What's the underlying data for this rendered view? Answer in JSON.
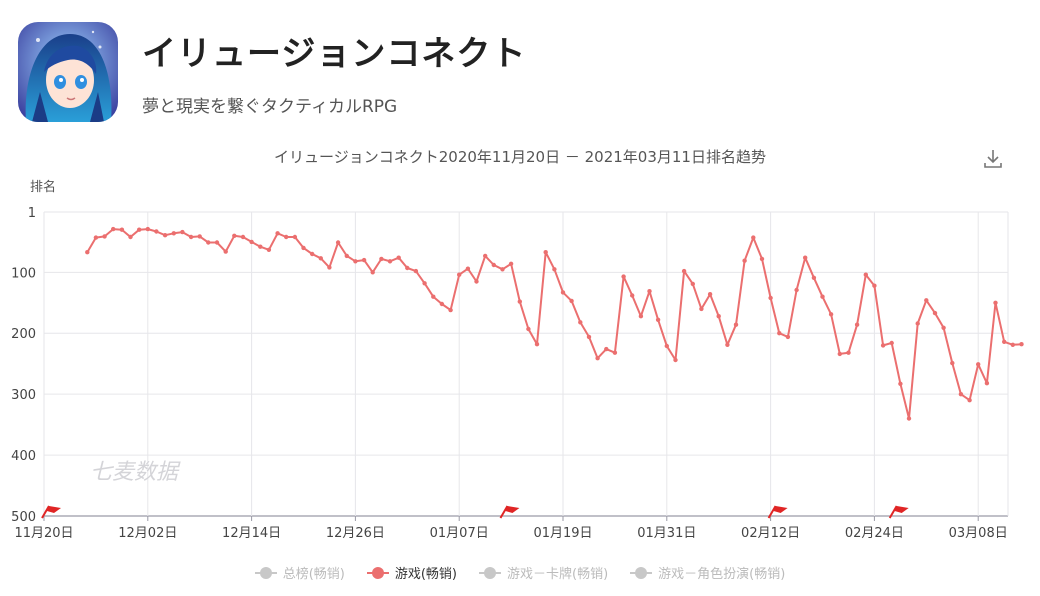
{
  "app": {
    "title": "イリュージョンコネクト",
    "subtitle": "夢と現実を繋ぐタクティカルRPG",
    "icon": "anime-girl-app-icon"
  },
  "download_icon": "download-icon",
  "watermark": "七麦数据",
  "colors": {
    "line": "#eb6f6f",
    "grid": "#e6e6ea",
    "flag": "#e02525",
    "legend_inactive": "#c8c8c8"
  },
  "chart_data": {
    "type": "line",
    "title": "イリュージョンコネクト2020年11月20日 － 2021年03月11日排名趋势",
    "ylabel": "排名",
    "ylim": [
      1,
      500
    ],
    "y_inverted": true,
    "y_ticks": [
      "1",
      "100",
      "200",
      "300",
      "400",
      "500"
    ],
    "x_ticks": [
      "11月20日",
      "12月02日",
      "12月14日",
      "12月26日",
      "01月07日",
      "01月19日",
      "01月31日",
      "02月12日",
      "02月24日",
      "03月08日"
    ],
    "x_range": [
      "2020-11-20",
      "2021-03-11"
    ],
    "grid": true,
    "legend_position": "bottom-center",
    "legend": [
      {
        "name": "总榜(畅销)",
        "active": false
      },
      {
        "name": "游戏(畅销)",
        "active": true
      },
      {
        "name": "游戏－卡牌(畅销)",
        "active": false
      },
      {
        "name": "游戏－角色扮演(畅销)",
        "active": false
      }
    ],
    "flags": [
      "2020-11-20",
      "2021-01-12",
      "2021-02-12",
      "2021-02-26"
    ],
    "series": [
      {
        "name": "游戏(畅销)",
        "points": [
          [
            "2020-11-25",
            67
          ],
          [
            "2020-11-26",
            43
          ],
          [
            "2020-11-27",
            41
          ],
          [
            "2020-11-28",
            29
          ],
          [
            "2020-11-29",
            30
          ],
          [
            "2020-11-30",
            42
          ],
          [
            "2020-12-01",
            30
          ],
          [
            "2020-12-02",
            29
          ],
          [
            "2020-12-03",
            33
          ],
          [
            "2020-12-04",
            39
          ],
          [
            "2020-12-05",
            36
          ],
          [
            "2020-12-06",
            34
          ],
          [
            "2020-12-07",
            42
          ],
          [
            "2020-12-08",
            41
          ],
          [
            "2020-12-09",
            51
          ],
          [
            "2020-12-10",
            51
          ],
          [
            "2020-12-11",
            66
          ],
          [
            "2020-12-12",
            40
          ],
          [
            "2020-12-13",
            42
          ],
          [
            "2020-12-14",
            50
          ],
          [
            "2020-12-15",
            58
          ],
          [
            "2020-12-16",
            63
          ],
          [
            "2020-12-17",
            36
          ],
          [
            "2020-12-18",
            42
          ],
          [
            "2020-12-19",
            42
          ],
          [
            "2020-12-20",
            60
          ],
          [
            "2020-12-21",
            70
          ],
          [
            "2020-12-22",
            77
          ],
          [
            "2020-12-23",
            92
          ],
          [
            "2020-12-24",
            51
          ],
          [
            "2020-12-25",
            73
          ],
          [
            "2020-12-26",
            82
          ],
          [
            "2020-12-27",
            80
          ],
          [
            "2020-12-28",
            100
          ],
          [
            "2020-12-29",
            78
          ],
          [
            "2020-12-30",
            82
          ],
          [
            "2020-12-31",
            76
          ],
          [
            "2021-01-01",
            93
          ],
          [
            "2021-01-02",
            98
          ],
          [
            "2021-01-03",
            118
          ],
          [
            "2021-01-04",
            140
          ],
          [
            "2021-01-05",
            152
          ],
          [
            "2021-01-06",
            162
          ],
          [
            "2021-01-07",
            104
          ],
          [
            "2021-01-08",
            94
          ],
          [
            "2021-01-09",
            115
          ],
          [
            "2021-01-10",
            73
          ],
          [
            "2021-01-11",
            88
          ],
          [
            "2021-01-12",
            95
          ],
          [
            "2021-01-13",
            86
          ],
          [
            "2021-01-14",
            148
          ],
          [
            "2021-01-15",
            193
          ],
          [
            "2021-01-16",
            218
          ],
          [
            "2021-01-17",
            67
          ],
          [
            "2021-01-18",
            95
          ],
          [
            "2021-01-19",
            133
          ],
          [
            "2021-01-20",
            147
          ],
          [
            "2021-01-21",
            182
          ],
          [
            "2021-01-22",
            206
          ],
          [
            "2021-01-23",
            241
          ],
          [
            "2021-01-24",
            226
          ],
          [
            "2021-01-25",
            232
          ],
          [
            "2021-01-26",
            107
          ],
          [
            "2021-01-27",
            138
          ],
          [
            "2021-01-28",
            172
          ],
          [
            "2021-01-29",
            131
          ],
          [
            "2021-01-30",
            178
          ],
          [
            "2021-01-31",
            221
          ],
          [
            "2021-02-01",
            244
          ],
          [
            "2021-02-02",
            98
          ],
          [
            "2021-02-03",
            119
          ],
          [
            "2021-02-04",
            160
          ],
          [
            "2021-02-05",
            136
          ],
          [
            "2021-02-06",
            172
          ],
          [
            "2021-02-07",
            219
          ],
          [
            "2021-02-08",
            186
          ],
          [
            "2021-02-09",
            81
          ],
          [
            "2021-02-10",
            43
          ],
          [
            "2021-02-11",
            78
          ],
          [
            "2021-02-12",
            142
          ],
          [
            "2021-02-13",
            200
          ],
          [
            "2021-02-14",
            206
          ],
          [
            "2021-02-15",
            129
          ],
          [
            "2021-02-16",
            76
          ],
          [
            "2021-02-17",
            109
          ],
          [
            "2021-02-18",
            140
          ],
          [
            "2021-02-19",
            169
          ],
          [
            "2021-02-20",
            234
          ],
          [
            "2021-02-21",
            232
          ],
          [
            "2021-02-22",
            186
          ],
          [
            "2021-02-23",
            104
          ],
          [
            "2021-02-24",
            122
          ],
          [
            "2021-02-25",
            220
          ],
          [
            "2021-02-26",
            216
          ],
          [
            "2021-02-27",
            283
          ],
          [
            "2021-02-28",
            340
          ],
          [
            "2021-03-01",
            184
          ],
          [
            "2021-03-02",
            146
          ],
          [
            "2021-03-03",
            167
          ],
          [
            "2021-03-04",
            191
          ],
          [
            "2021-03-05",
            249
          ],
          [
            "2021-03-06",
            300
          ],
          [
            "2021-03-07",
            310
          ],
          [
            "2021-03-08",
            251
          ],
          [
            "2021-03-09",
            282
          ],
          [
            "2021-03-10",
            150
          ],
          [
            "2021-03-11",
            214
          ],
          [
            "2021-03-12",
            219
          ],
          [
            "2021-03-13",
            218
          ]
        ]
      }
    ]
  }
}
